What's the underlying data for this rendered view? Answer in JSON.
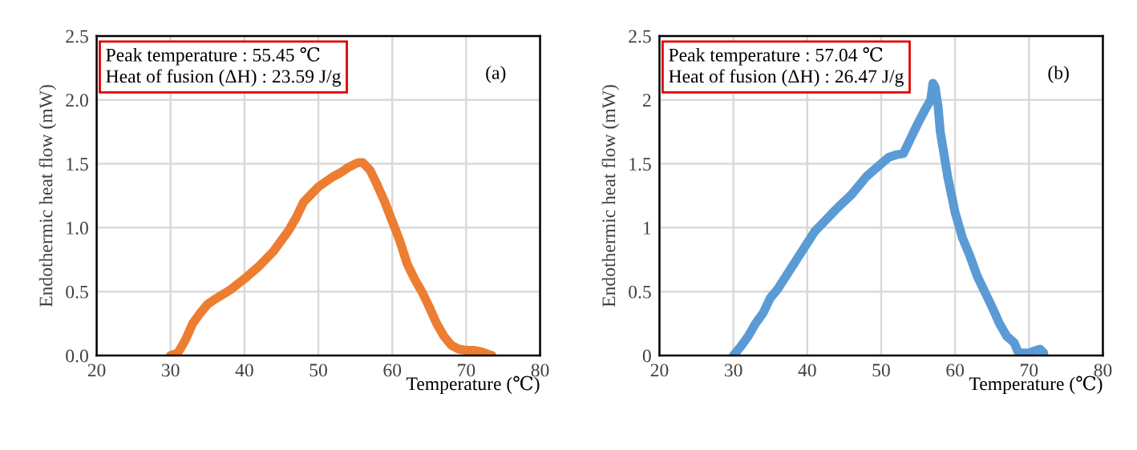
{
  "chart_data": [
    {
      "type": "line",
      "xlabel": "Temperature (℃)",
      "ylabel": "Endothermic heat flow (mW)",
      "annotations": [
        "Peak temperature : 55.45 ℃\nHeat of fusion (ΔH) : 23.59 J/g",
        "(a)"
      ],
      "xlim": [
        20,
        80
      ],
      "xticks": [
        20,
        30,
        40,
        50,
        60,
        70,
        80
      ],
      "ylim": [
        0,
        2.5
      ],
      "yticks": [
        {
          "value": 0,
          "label": "0.0"
        },
        {
          "value": 0.5,
          "label": "0.5"
        },
        {
          "value": 1,
          "label": "1.0"
        },
        {
          "value": 1.5,
          "label": "1.5"
        },
        {
          "value": 2,
          "label": "2.0"
        },
        {
          "value": 2.5,
          "label": "2.5"
        }
      ],
      "grid": true,
      "legend": false,
      "series": [
        {
          "color": "#ed7d31",
          "x": [
            30,
            31,
            32,
            33,
            34,
            35,
            36,
            38,
            40,
            42,
            44,
            46,
            47,
            48,
            50,
            52,
            53,
            54,
            55,
            55.5,
            56,
            57,
            58,
            59,
            60,
            61,
            62,
            63,
            64,
            65,
            66,
            67,
            68,
            69,
            70,
            71,
            72,
            73,
            73.5
          ],
          "values": [
            0,
            0.02,
            0.12,
            0.25,
            0.33,
            0.4,
            0.44,
            0.51,
            0.6,
            0.7,
            0.82,
            0.98,
            1.08,
            1.2,
            1.32,
            1.4,
            1.43,
            1.47,
            1.5,
            1.51,
            1.51,
            1.45,
            1.33,
            1.2,
            1.05,
            0.9,
            0.72,
            0.6,
            0.5,
            0.38,
            0.25,
            0.15,
            0.08,
            0.05,
            0.04,
            0.04,
            0.03,
            0.01,
            0
          ]
        }
      ]
    },
    {
      "type": "line",
      "xlabel": "Temperature (℃)",
      "ylabel": "Endothermic heat flow (mW)",
      "annotations": [
        "Peak temperature : 57.04 ℃\nHeat of fusion (ΔH) : 26.47 J/g",
        "(b)"
      ],
      "xlim": [
        20,
        80
      ],
      "xticks": [
        20,
        30,
        40,
        50,
        60,
        70,
        80
      ],
      "ylim": [
        0,
        2.5
      ],
      "yticks": [
        0,
        0.5,
        1,
        1.5,
        2,
        2.5
      ],
      "grid": true,
      "legend": false,
      "series": [
        {
          "color": "#5b9bd5",
          "x": [
            30,
            31,
            32,
            33,
            34,
            35,
            36,
            38,
            40,
            41,
            42,
            44,
            46,
            48,
            50,
            51,
            52,
            53,
            54,
            55,
            56,
            56.7,
            57,
            57.3,
            57.7,
            58,
            59,
            60,
            61,
            62,
            63,
            64,
            65,
            66,
            67,
            68,
            68.5,
            69,
            70,
            71,
            71.5,
            72
          ],
          "values": [
            0,
            0.07,
            0.15,
            0.25,
            0.33,
            0.45,
            0.52,
            0.7,
            0.88,
            0.97,
            1.03,
            1.15,
            1.26,
            1.4,
            1.5,
            1.55,
            1.57,
            1.58,
            1.7,
            1.82,
            1.93,
            2.0,
            2.13,
            2.1,
            1.95,
            1.75,
            1.4,
            1.12,
            0.92,
            0.78,
            0.62,
            0.5,
            0.38,
            0.25,
            0.15,
            0.1,
            0.03,
            0.02,
            0.02,
            0.04,
            0.05,
            0.02
          ]
        }
      ]
    }
  ]
}
